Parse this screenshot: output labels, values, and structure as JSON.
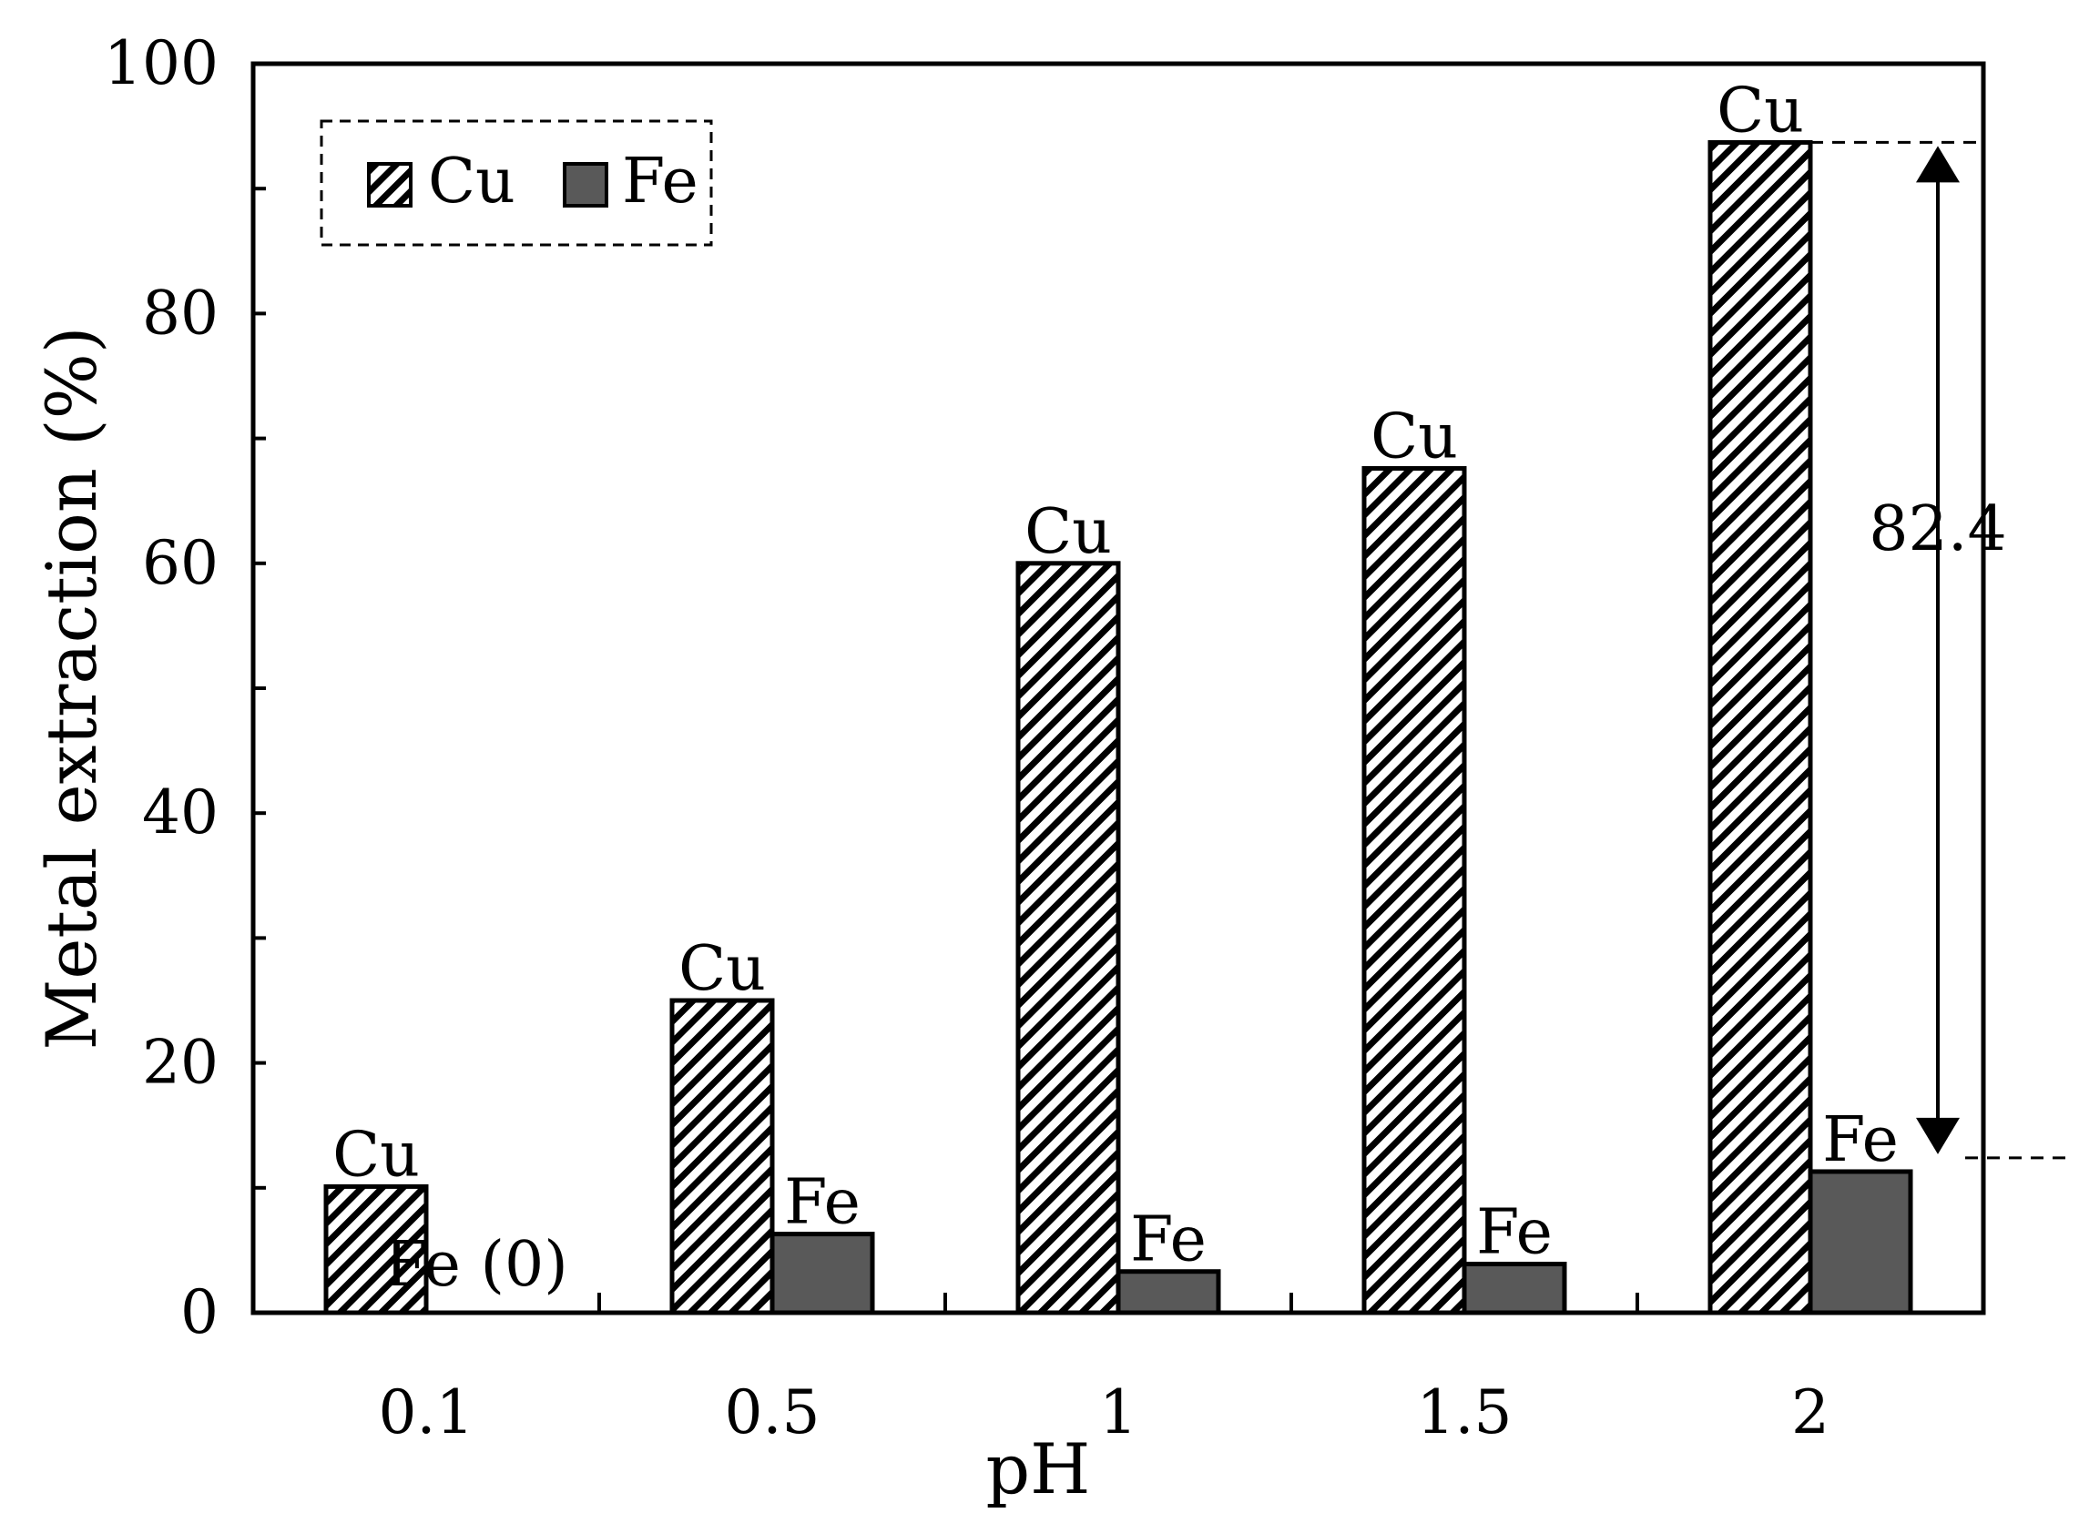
{
  "chart_data": {
    "type": "bar",
    "title": "",
    "xlabel": "pH",
    "ylabel": "Metal extraction (%)",
    "ylim": [
      0,
      100
    ],
    "yticks": [
      "0",
      "20",
      "40",
      "60",
      "80",
      "100"
    ],
    "categories": [
      "0.1",
      "0.5",
      "1",
      "1.5",
      "2"
    ],
    "series": [
      {
        "name": "Cu",
        "values": [
          10.1,
          25.0,
          60.0,
          67.6,
          93.7
        ],
        "labels": [
          "Cu",
          "Cu",
          "Cu",
          "Cu",
          "Cu"
        ],
        "fill": "hatched"
      },
      {
        "name": "Fe",
        "values": [
          0,
          6.3,
          3.3,
          3.9,
          11.3
        ],
        "labels": [
          "Fe (0)",
          "Fe",
          "Fe",
          "Fe",
          "Fe"
        ],
        "fill": "#595959"
      }
    ],
    "legend": {
      "position": "top-left",
      "border": "dashed"
    },
    "annotation": {
      "text": "82.4",
      "from": 93.7,
      "to": 12.4,
      "arrow": "double"
    },
    "grid": false
  }
}
